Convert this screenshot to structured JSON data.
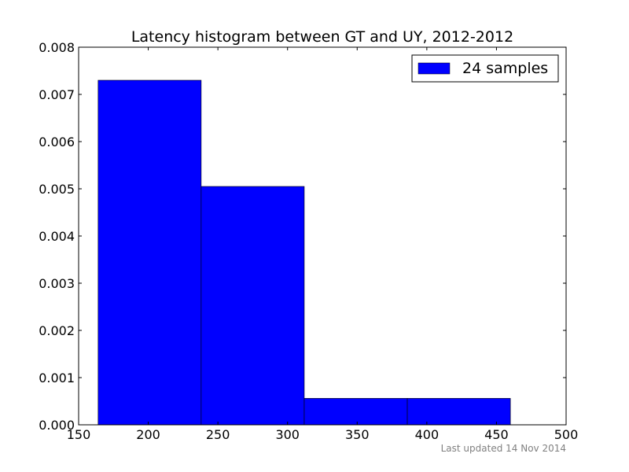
{
  "chart_data": {
    "type": "bar",
    "title": "Latency histogram between GT and UY, 2012-2012",
    "xlabel": "",
    "ylabel": "",
    "xlim": [
      150,
      500
    ],
    "ylim": [
      0,
      0.008
    ],
    "xticks": [
      "150",
      "200",
      "250",
      "300",
      "350",
      "400",
      "450",
      "500"
    ],
    "yticks": [
      "0.000",
      "0.001",
      "0.002",
      "0.003",
      "0.004",
      "0.005",
      "0.006",
      "0.007",
      "0.008"
    ],
    "bins": [
      {
        "x0": 164,
        "x1": 238,
        "value": 0.0073
      },
      {
        "x0": 238,
        "x1": 312,
        "value": 0.00505
      },
      {
        "x0": 312,
        "x1": 386,
        "value": 0.00056
      },
      {
        "x0": 386,
        "x1": 460,
        "value": 0.00056
      }
    ],
    "series": [
      {
        "name": "24 samples",
        "color": "#0000ff"
      }
    ],
    "legend_position": "top-right",
    "grid": false,
    "footer": "Last updated 14 Nov 2014"
  }
}
